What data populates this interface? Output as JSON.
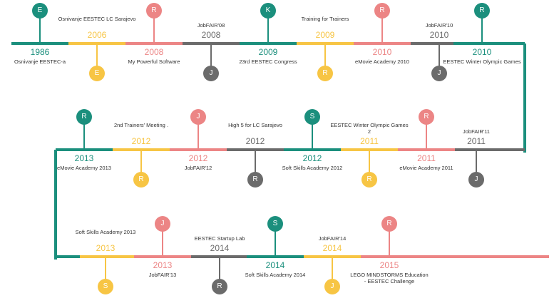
{
  "colors": {
    "teal": "#1b8f7d",
    "yellow": "#f7c544",
    "salmon": "#ec8585",
    "gray": "#6b6b6b",
    "text": "#333333"
  },
  "rows": [
    {
      "events": [
        {
          "year": "1986",
          "label": "Osnivanje EESTEC-a",
          "letter": "E",
          "color": "teal"
        },
        {
          "year": "2006",
          "label": "Osnivanje EESTEC LC Sarajevo",
          "letter": "E",
          "color": "yellow"
        },
        {
          "year": "2008",
          "label": "My Powerful Software",
          "letter": "R",
          "color": "salmon"
        },
        {
          "year": "2008",
          "label": "JobFAIR'08",
          "letter": "J",
          "color": "gray"
        },
        {
          "year": "2009",
          "label": "23rd EESTEC Congress",
          "letter": "K",
          "color": "teal"
        },
        {
          "year": "2009",
          "label": "Training for Trainers",
          "letter": "R",
          "color": "yellow"
        },
        {
          "year": "2010",
          "label": "eMovie Academy 2010",
          "letter": "R",
          "color": "salmon"
        },
        {
          "year": "2010",
          "label": "JobFAIR'10",
          "letter": "J",
          "color": "gray"
        },
        {
          "year": "2010",
          "label": "EESTEC Winter Olympic Games",
          "letter": "R",
          "color": "teal"
        }
      ]
    },
    {
      "events": [
        {
          "year": "2013",
          "label": "eMovie Academy 2013",
          "letter": "R",
          "color": "teal"
        },
        {
          "year": "2012",
          "label": "2nd Trainers' Meeting .",
          "letter": "R",
          "color": "yellow"
        },
        {
          "year": "2012",
          "label": "JobFAIR'12",
          "letter": "J",
          "color": "salmon"
        },
        {
          "year": "2012",
          "label": "High 5 for LC Sarajevo",
          "letter": "R",
          "color": "gray"
        },
        {
          "year": "2012",
          "label": "Soft Skills Academy 2012",
          "letter": "S",
          "color": "teal"
        },
        {
          "year": "2011",
          "label": "EESTEC Winter Olympic Games 2",
          "letter": "R",
          "color": "yellow"
        },
        {
          "year": "2011",
          "label": "eMovie Academy 2011",
          "letter": "R",
          "color": "salmon"
        },
        {
          "year": "2011",
          "label": "JobFAIR'11",
          "letter": "J",
          "color": "gray"
        }
      ]
    },
    {
      "events": [
        {
          "year": "2013",
          "label": "Soft Skills Academy 2013",
          "letter": "S",
          "color": "yellow"
        },
        {
          "year": "2013",
          "label": "JobFAIR'13",
          "letter": "J",
          "color": "salmon"
        },
        {
          "year": "2014",
          "label": "EESTEC Startup Lab",
          "letter": "R",
          "color": "gray"
        },
        {
          "year": "2014",
          "label": "Soft Skills Academy 2014",
          "letter": "S",
          "color": "teal"
        },
        {
          "year": "2014",
          "label": "JobFAIR'14",
          "letter": "J",
          "color": "yellow"
        },
        {
          "year": "2015",
          "label": "LEGO MINDSTORMS Education - EESTEC Challenge",
          "letter": "R",
          "color": "salmon"
        }
      ]
    }
  ]
}
